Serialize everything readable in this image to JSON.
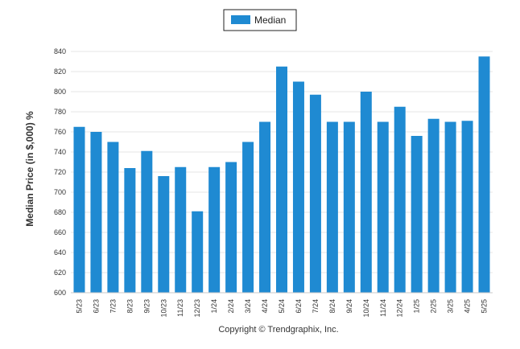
{
  "chart_data": {
    "type": "bar",
    "legend": {
      "placement": "top-center",
      "entries": [
        "Median"
      ]
    },
    "ylabel": "Median Price (in $,000) %",
    "xlabel": "",
    "ylim": [
      600,
      840
    ],
    "yticks": [
      600,
      620,
      640,
      660,
      680,
      700,
      720,
      740,
      760,
      780,
      800,
      820,
      840
    ],
    "grid": true,
    "categories": [
      "5/23",
      "6/23",
      "7/23",
      "8/23",
      "9/23",
      "10/23",
      "11/23",
      "12/23",
      "1/24",
      "2/24",
      "3/24",
      "4/24",
      "5/24",
      "6/24",
      "7/24",
      "8/24",
      "9/24",
      "10/24",
      "11/24",
      "12/24",
      "1/25",
      "2/25",
      "3/25",
      "4/25",
      "5/25"
    ],
    "series": [
      {
        "name": "Median",
        "color": "#1f8ad2",
        "values": [
          765,
          760,
          750,
          724,
          741,
          716,
          725,
          681,
          725,
          730,
          750,
          770,
          825,
          810,
          797,
          770,
          770,
          800,
          770,
          785,
          756,
          773,
          770,
          771,
          835
        ]
      }
    ]
  },
  "footer": {
    "copyright": "Copyright © Trendgraphix, Inc."
  }
}
